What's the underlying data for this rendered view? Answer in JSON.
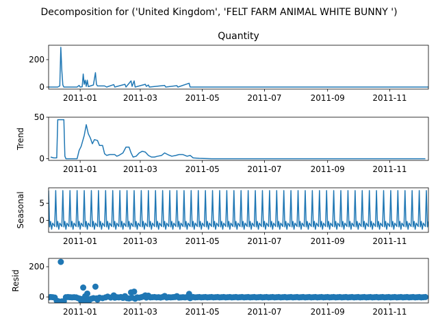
{
  "figure": {
    "suptitle": "Decomposition for ('United Kingdom', 'FELT FARM ANIMAL WHITE BUNNY ')",
    "line_color": "#1f77b4"
  },
  "chart_data": [
    {
      "type": "line",
      "title": "Quantity",
      "ylabel": "",
      "xlim": [
        "2010-12-01",
        "2011-12-09"
      ],
      "ylim": [
        -15,
        305
      ],
      "yticks": [
        0,
        200
      ],
      "xticks": [
        "2011-01",
        "2011-03",
        "2011-05",
        "2011-07",
        "2011-09",
        "2011-11"
      ],
      "grid": false,
      "series": [
        {
          "points": [
            [
              "2010-12-01",
              0
            ],
            [
              "2010-12-10",
              0
            ],
            [
              "2010-12-12",
              8
            ],
            [
              "2010-12-13",
              290
            ],
            [
              "2010-12-14",
              120
            ],
            [
              "2010-12-15",
              15
            ],
            [
              "2010-12-16",
              0
            ],
            [
              "2010-12-29",
              0
            ],
            [
              "2010-12-31",
              12
            ],
            [
              "2011-01-01",
              0
            ],
            [
              "2011-01-03",
              2
            ],
            [
              "2011-01-04",
              95
            ],
            [
              "2011-01-05",
              20
            ],
            [
              "2011-01-06",
              50
            ],
            [
              "2011-01-07",
              5
            ],
            [
              "2011-01-08",
              50
            ],
            [
              "2011-01-09",
              3
            ],
            [
              "2011-01-14",
              15
            ],
            [
              "2011-01-16",
              105
            ],
            [
              "2011-01-17",
              20
            ],
            [
              "2011-01-18",
              8
            ],
            [
              "2011-01-25",
              8
            ],
            [
              "2011-01-27",
              0
            ],
            [
              "2011-02-03",
              18
            ],
            [
              "2011-02-04",
              0
            ],
            [
              "2011-02-14",
              20
            ],
            [
              "2011-02-15",
              0
            ],
            [
              "2011-02-20",
              45
            ],
            [
              "2011-02-21",
              5
            ],
            [
              "2011-02-23",
              45
            ],
            [
              "2011-02-24",
              0
            ],
            [
              "2011-03-06",
              20
            ],
            [
              "2011-03-07",
              5
            ],
            [
              "2011-03-09",
              15
            ],
            [
              "2011-03-10",
              0
            ],
            [
              "2011-03-25",
              12
            ],
            [
              "2011-03-26",
              0
            ],
            [
              "2011-04-06",
              10
            ],
            [
              "2011-04-07",
              0
            ],
            [
              "2011-04-18",
              28
            ],
            [
              "2011-04-19",
              0
            ],
            [
              "2011-12-09",
              0
            ]
          ]
        }
      ]
    },
    {
      "type": "line",
      "title": "",
      "ylabel": "Trend",
      "xlim": [
        "2010-12-01",
        "2011-12-09"
      ],
      "ylim": [
        -2,
        50
      ],
      "yticks": [
        0,
        50
      ],
      "xticks": [
        "2011-01",
        "2011-03",
        "2011-05",
        "2011-07",
        "2011-09",
        "2011-11"
      ],
      "grid": false,
      "series": [
        {
          "points": [
            [
              "2010-12-03",
              2
            ],
            [
              "2010-12-06",
              1
            ],
            [
              "2010-12-09",
              1
            ],
            [
              "2010-12-10",
              47
            ],
            [
              "2010-12-16",
              47
            ],
            [
              "2010-12-17",
              3
            ],
            [
              "2010-12-18",
              0
            ],
            [
              "2010-12-29",
              0
            ],
            [
              "2010-12-31",
              10
            ],
            [
              "2011-01-02",
              15
            ],
            [
              "2011-01-05",
              28
            ],
            [
              "2011-01-07",
              41
            ],
            [
              "2011-01-09",
              30
            ],
            [
              "2011-01-11",
              25
            ],
            [
              "2011-01-13",
              18
            ],
            [
              "2011-01-15",
              23
            ],
            [
              "2011-01-18",
              22
            ],
            [
              "2011-01-20",
              16
            ],
            [
              "2011-01-23",
              16
            ],
            [
              "2011-01-25",
              6
            ],
            [
              "2011-01-27",
              4
            ],
            [
              "2011-01-30",
              5
            ],
            [
              "2011-02-04",
              5
            ],
            [
              "2011-02-06",
              3
            ],
            [
              "2011-02-08",
              4
            ],
            [
              "2011-02-12",
              7
            ],
            [
              "2011-02-15",
              14
            ],
            [
              "2011-02-18",
              14
            ],
            [
              "2011-02-20",
              7
            ],
            [
              "2011-02-22",
              2
            ],
            [
              "2011-02-25",
              3
            ],
            [
              "2011-02-28",
              7
            ],
            [
              "2011-03-03",
              9
            ],
            [
              "2011-03-06",
              8
            ],
            [
              "2011-03-09",
              4
            ],
            [
              "2011-03-12",
              2
            ],
            [
              "2011-03-15",
              2
            ],
            [
              "2011-03-18",
              3
            ],
            [
              "2011-03-22",
              4
            ],
            [
              "2011-03-25",
              7
            ],
            [
              "2011-03-28",
              5
            ],
            [
              "2011-04-01",
              3
            ],
            [
              "2011-04-05",
              4
            ],
            [
              "2011-04-08",
              5
            ],
            [
              "2011-04-12",
              5
            ],
            [
              "2011-04-16",
              3
            ],
            [
              "2011-04-19",
              4
            ],
            [
              "2011-04-22",
              1
            ],
            [
              "2011-04-28",
              0.5
            ],
            [
              "2011-05-10",
              0
            ],
            [
              "2011-12-06",
              0
            ]
          ]
        }
      ]
    },
    {
      "type": "line",
      "title": "",
      "ylabel": "Seasonal",
      "xlim": [
        "2010-12-01",
        "2011-12-09"
      ],
      "ylim": [
        -3.5,
        9.5
      ],
      "yticks": [
        0,
        5
      ],
      "xticks": [
        "2011-01",
        "2011-03",
        "2011-05",
        "2011-07",
        "2011-09",
        "2011-11"
      ],
      "grid": false,
      "period_days": 7,
      "weekly_pattern": [
        8.7,
        -1.9,
        -0.3,
        -2.6,
        -0.8,
        -1.3,
        -1.8
      ],
      "series": [
        {
          "start": "2010-12-01",
          "end": "2011-12-09"
        }
      ]
    },
    {
      "type": "scatter",
      "title": "",
      "ylabel": "Resid",
      "xlim": [
        "2010-12-01",
        "2011-12-09"
      ],
      "ylim": [
        -40,
        255
      ],
      "yticks": [
        0,
        200
      ],
      "xticks": [
        "2011-01",
        "2011-03",
        "2011-05",
        "2011-07",
        "2011-09",
        "2011-11"
      ],
      "grid": false,
      "regular_step_days": 2,
      "regular_range": [
        "2011-04-20",
        "2011-12-07"
      ],
      "series": [
        {
          "points": [
            [
              "2010-12-01",
              -3
            ],
            [
              "2010-12-03",
              -1
            ],
            [
              "2010-12-05",
              -2
            ],
            [
              "2010-12-07",
              -4
            ],
            [
              "2010-12-09",
              -25
            ],
            [
              "2010-12-10",
              -35
            ],
            [
              "2010-12-11",
              -30
            ],
            [
              "2010-12-12",
              -38
            ],
            [
              "2010-12-13",
              232
            ],
            [
              "2010-12-14",
              -30
            ],
            [
              "2010-12-15",
              -35
            ],
            [
              "2010-12-16",
              -28
            ],
            [
              "2010-12-18",
              -2
            ],
            [
              "2010-12-20",
              -1
            ],
            [
              "2010-12-22",
              -2
            ],
            [
              "2010-12-24",
              -3
            ],
            [
              "2010-12-26",
              -2
            ],
            [
              "2010-12-28",
              -3
            ],
            [
              "2010-12-30",
              -8
            ],
            [
              "2011-01-01",
              -12
            ],
            [
              "2011-01-02",
              -25
            ],
            [
              "2011-01-03",
              -15
            ],
            [
              "2011-01-04",
              62
            ],
            [
              "2011-01-05",
              -20
            ],
            [
              "2011-01-06",
              5
            ],
            [
              "2011-01-07",
              -35
            ],
            [
              "2011-01-08",
              22
            ],
            [
              "2011-01-09",
              -15
            ],
            [
              "2011-01-10",
              -22
            ],
            [
              "2011-01-12",
              -12
            ],
            [
              "2011-01-14",
              -8
            ],
            [
              "2011-01-16",
              68
            ],
            [
              "2011-01-17",
              -10
            ],
            [
              "2011-01-18",
              -18
            ],
            [
              "2011-01-20",
              -5
            ],
            [
              "2011-01-23",
              -8
            ],
            [
              "2011-01-26",
              -3
            ],
            [
              "2011-01-28",
              2
            ],
            [
              "2011-01-31",
              -4
            ],
            [
              "2011-02-03",
              10
            ],
            [
              "2011-02-04",
              -5
            ],
            [
              "2011-02-06",
              -2
            ],
            [
              "2011-02-08",
              -3
            ],
            [
              "2011-02-10",
              -1
            ],
            [
              "2011-02-12",
              -6
            ],
            [
              "2011-02-14",
              5
            ],
            [
              "2011-02-16",
              -8
            ],
            [
              "2011-02-18",
              -10
            ],
            [
              "2011-02-20",
              30
            ],
            [
              "2011-02-21",
              -5
            ],
            [
              "2011-02-23",
              35
            ],
            [
              "2011-02-24",
              -12
            ],
            [
              "2011-02-26",
              -3
            ],
            [
              "2011-02-28",
              -5
            ],
            [
              "2011-03-02",
              -2
            ],
            [
              "2011-03-04",
              2
            ],
            [
              "2011-03-06",
              10
            ],
            [
              "2011-03-07",
              -4
            ],
            [
              "2011-03-09",
              8
            ],
            [
              "2011-03-11",
              -3
            ],
            [
              "2011-03-13",
              -2
            ],
            [
              "2011-03-15",
              -1
            ],
            [
              "2011-03-17",
              -3
            ],
            [
              "2011-03-19",
              -2
            ],
            [
              "2011-03-21",
              -4
            ],
            [
              "2011-03-23",
              -1
            ],
            [
              "2011-03-25",
              6
            ],
            [
              "2011-03-27",
              -4
            ],
            [
              "2011-03-29",
              -2
            ],
            [
              "2011-03-31",
              -3
            ],
            [
              "2011-04-02",
              -2
            ],
            [
              "2011-04-04",
              -1
            ],
            [
              "2011-04-06",
              5
            ],
            [
              "2011-04-08",
              -4
            ],
            [
              "2011-04-10",
              -3
            ],
            [
              "2011-04-12",
              -2
            ],
            [
              "2011-04-14",
              -3
            ],
            [
              "2011-04-16",
              -1
            ],
            [
              "2011-04-18",
              20
            ],
            [
              "2011-04-19",
              -8
            ]
          ]
        }
      ]
    }
  ],
  "axes_layout": [
    {
      "id": "observed"
    },
    {
      "id": "trend"
    },
    {
      "id": "seasonal"
    },
    {
      "id": "resid"
    }
  ]
}
